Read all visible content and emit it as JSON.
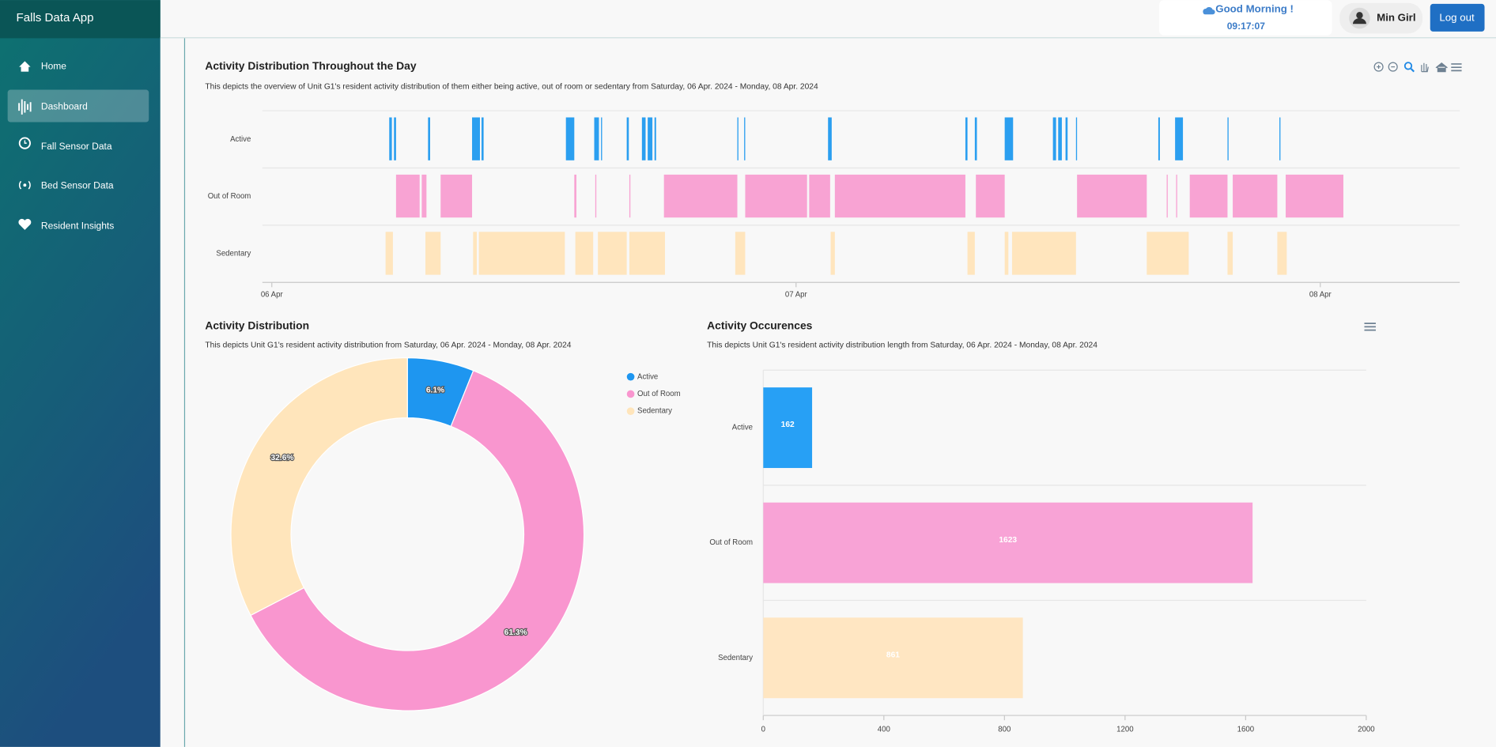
{
  "sidebar": {
    "app_title": "Falls Data App",
    "nav": [
      "Home",
      "Dashboard",
      "Fall Sensor Data",
      "Bed Sensor Data",
      "Resident Insights"
    ]
  },
  "header": {
    "greeting": "Good Morning !",
    "time": "09:17:07",
    "user": "Min Girl",
    "logout": "Log out"
  },
  "charts": [
    {
      "type": "timeline",
      "title": "Activity Distribution Throughout the Day",
      "subtitle": "This depicts the overview of Unit G1's resident activity distribution of them either being active, out of room or sedentary from Saturday, 06 Apr. 2024 - Monday, 08 Apr. 2024",
      "xlim": [
        -0.018,
        2.266
      ],
      "xticks": [
        {
          "value": 0,
          "label": "06 Apr"
        },
        {
          "value": 1,
          "label": "07 Apr"
        },
        {
          "value": 2,
          "label": "08 Apr"
        }
      ],
      "series": [
        {
          "name": "Active",
          "color": "#2b9ff0",
          "ranges": [
            [
              0.224,
              0.229
            ],
            [
              0.233,
              0.237
            ],
            [
              0.298,
              0.302
            ],
            [
              0.382,
              0.397
            ],
            [
              0.4,
              0.404
            ],
            [
              0.561,
              0.577
            ],
            [
              0.615,
              0.624
            ],
            [
              0.628,
              0.63
            ],
            [
              0.677,
              0.681
            ],
            [
              0.706,
              0.713
            ],
            [
              0.717,
              0.726
            ],
            [
              0.73,
              0.733
            ],
            [
              0.888,
              0.89
            ],
            [
              0.901,
              0.903
            ],
            [
              1.061,
              1.068
            ],
            [
              1.323,
              1.327
            ],
            [
              1.341,
              1.345
            ],
            [
              1.398,
              1.414
            ],
            [
              1.49,
              1.496
            ],
            [
              1.5,
              1.507
            ],
            [
              1.514,
              1.518
            ],
            [
              1.534,
              1.536
            ],
            [
              1.691,
              1.694
            ],
            [
              1.723,
              1.738
            ],
            [
              1.823,
              1.825
            ],
            [
              1.922,
              1.924
            ]
          ]
        },
        {
          "name": "Out of Room",
          "color": "#f8a3d3",
          "ranges": [
            [
              0.237,
              0.282
            ],
            [
              0.286,
              0.295
            ],
            [
              0.322,
              0.382
            ],
            [
              0.577,
              0.581
            ],
            [
              0.617,
              0.619
            ],
            [
              0.682,
              0.684
            ],
            [
              0.748,
              0.888
            ],
            [
              0.903,
              1.021
            ],
            [
              1.025,
              1.065
            ],
            [
              1.074,
              1.323
            ],
            [
              1.343,
              1.398
            ],
            [
              1.536,
              1.669
            ],
            [
              1.707,
              1.709
            ],
            [
              1.725,
              1.727
            ],
            [
              1.751,
              1.823
            ],
            [
              1.833,
              1.918
            ],
            [
              1.934,
              2.044
            ]
          ]
        },
        {
          "name": "Sedentary",
          "color": "#ffe5bd",
          "ranges": [
            [
              0.217,
              0.231
            ],
            [
              0.293,
              0.322
            ],
            [
              0.384,
              0.391
            ],
            [
              0.395,
              0.559
            ],
            [
              0.579,
              0.613
            ],
            [
              0.622,
              0.677
            ],
            [
              0.682,
              0.75
            ],
            [
              0.884,
              0.903
            ],
            [
              1.066,
              1.074
            ],
            [
              1.327,
              1.341
            ],
            [
              1.398,
              1.405
            ],
            [
              1.412,
              1.534
            ],
            [
              1.669,
              1.749
            ],
            [
              1.823,
              1.833
            ],
            [
              1.918,
              1.936
            ]
          ]
        }
      ]
    },
    {
      "type": "pie",
      "donut": true,
      "title": "Activity Distribution",
      "subtitle": "This depicts Unit G1's resident activity distribution from Saturday, 06 Apr. 2024 - Monday, 08 Apr. 2024",
      "categories": [
        "Active",
        "Out of Room",
        "Sedentary"
      ],
      "values": [
        6.1,
        61.3,
        32.6
      ],
      "value_labels": [
        "6.1%",
        "61.3%",
        "32.6%"
      ],
      "colors": [
        "#1e96f0",
        "#f996cf",
        "#ffe5bb"
      ]
    },
    {
      "type": "bar",
      "orientation": "horizontal",
      "title": "Activity Occurences",
      "subtitle": "This depicts Unit G1's resident activity distribution length from Saturday, 06 Apr. 2024 - Monday, 08 Apr. 2024",
      "categories": [
        "Active",
        "Out of Room",
        "Sedentary"
      ],
      "values": [
        162,
        1623,
        861
      ],
      "colors": [
        "#27a0f5",
        "#f8a3d6",
        "#ffe6c2"
      ],
      "xlim": [
        0,
        2000
      ],
      "xticks": [
        0,
        400,
        800,
        1200,
        1600,
        2000
      ]
    }
  ]
}
